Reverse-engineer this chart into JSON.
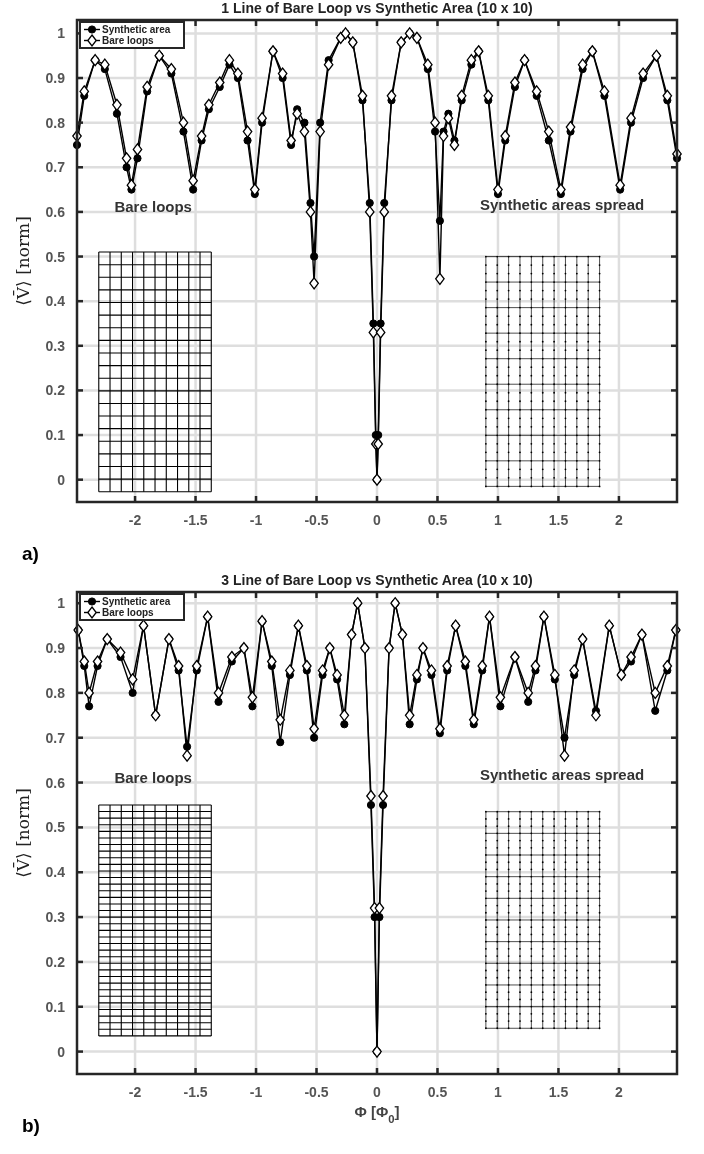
{
  "chart_data": [
    {
      "type": "line",
      "title": "1 Line of Bare Loop vs Synthetic Area (10 x 10)",
      "ylabel": "⟨V̄⟩ [norm]",
      "xlim": [
        -2.48,
        2.48
      ],
      "ylim": [
        -0.05,
        1.03
      ],
      "xticks": [
        -2,
        -1.5,
        -1,
        -0.5,
        0,
        0.5,
        1,
        1.5,
        2
      ],
      "yticks": [
        0,
        0.1,
        0.2,
        0.3,
        0.4,
        0.5,
        0.6,
        0.7,
        0.8,
        0.9,
        1
      ],
      "grid": true,
      "legend": "top left",
      "line_style": "solid",
      "annotations": [
        "Bare loops",
        "Synthetic areas spread",
        "a)"
      ],
      "series": [
        {
          "name": "Synthetic area",
          "color": "#000000",
          "marker": "circle",
          "x": [
            -2.48,
            -2.42,
            -2.33,
            -2.25,
            -2.15,
            -2.07,
            -2.03,
            -1.98,
            -1.9,
            -1.8,
            -1.7,
            -1.6,
            -1.52,
            -1.45,
            -1.39,
            -1.3,
            -1.22,
            -1.15,
            -1.07,
            -1.01,
            -0.95,
            -0.86,
            -0.78,
            -0.71,
            -0.66,
            -0.6,
            -0.55,
            -0.52,
            -0.47,
            -0.4,
            -0.3,
            -0.26,
            -0.2,
            -0.12,
            -0.06,
            -0.03,
            -0.01,
            0,
            0.01,
            0.03,
            0.06,
            0.12,
            0.2,
            0.27,
            0.33,
            0.42,
            0.48,
            0.52,
            0.55,
            0.59,
            0.64,
            0.7,
            0.78,
            0.84,
            0.92,
            1,
            1.06,
            1.14,
            1.22,
            1.32,
            1.42,
            1.52,
            1.6,
            1.7,
            1.78,
            1.88,
            2.01,
            2.1,
            2.2,
            2.31,
            2.4,
            2.48
          ],
          "values": [
            0.75,
            0.86,
            0.94,
            0.92,
            0.82,
            0.7,
            0.65,
            0.72,
            0.87,
            0.95,
            0.91,
            0.78,
            0.65,
            0.76,
            0.83,
            0.88,
            0.93,
            0.9,
            0.76,
            0.64,
            0.8,
            0.96,
            0.9,
            0.75,
            0.83,
            0.8,
            0.62,
            0.5,
            0.8,
            0.94,
            0.99,
            1,
            0.98,
            0.85,
            0.62,
            0.35,
            0.1,
            0,
            0.1,
            0.35,
            0.62,
            0.85,
            0.98,
            1,
            0.99,
            0.92,
            0.78,
            0.58,
            0.78,
            0.82,
            0.76,
            0.85,
            0.93,
            0.96,
            0.85,
            0.64,
            0.76,
            0.88,
            0.94,
            0.86,
            0.76,
            0.64,
            0.78,
            0.92,
            0.96,
            0.86,
            0.65,
            0.8,
            0.9,
            0.95,
            0.85,
            0.72
          ]
        },
        {
          "name": "Bare loops",
          "color": "#000000",
          "marker": "diamond",
          "x": [
            -2.48,
            -2.42,
            -2.33,
            -2.25,
            -2.15,
            -2.07,
            -2.03,
            -1.98,
            -1.9,
            -1.8,
            -1.7,
            -1.6,
            -1.52,
            -1.45,
            -1.39,
            -1.3,
            -1.22,
            -1.15,
            -1.07,
            -1.01,
            -0.95,
            -0.86,
            -0.78,
            -0.71,
            -0.66,
            -0.6,
            -0.55,
            -0.52,
            -0.47,
            -0.4,
            -0.3,
            -0.26,
            -0.2,
            -0.12,
            -0.06,
            -0.03,
            -0.01,
            0,
            0.01,
            0.03,
            0.06,
            0.12,
            0.2,
            0.27,
            0.33,
            0.42,
            0.48,
            0.52,
            0.55,
            0.59,
            0.64,
            0.7,
            0.78,
            0.84,
            0.92,
            1,
            1.06,
            1.14,
            1.22,
            1.32,
            1.42,
            1.52,
            1.6,
            1.7,
            1.78,
            1.88,
            2.01,
            2.1,
            2.2,
            2.31,
            2.4,
            2.48
          ],
          "values": [
            0.77,
            0.87,
            0.94,
            0.93,
            0.84,
            0.72,
            0.66,
            0.74,
            0.88,
            0.95,
            0.92,
            0.8,
            0.67,
            0.77,
            0.84,
            0.89,
            0.94,
            0.91,
            0.78,
            0.65,
            0.81,
            0.96,
            0.91,
            0.76,
            0.82,
            0.78,
            0.6,
            0.44,
            0.78,
            0.93,
            0.99,
            1,
            0.98,
            0.86,
            0.6,
            0.33,
            0.08,
            0,
            0.08,
            0.33,
            0.6,
            0.86,
            0.98,
            1,
            0.99,
            0.93,
            0.8,
            0.45,
            0.77,
            0.81,
            0.75,
            0.86,
            0.94,
            0.96,
            0.86,
            0.65,
            0.77,
            0.89,
            0.94,
            0.87,
            0.78,
            0.65,
            0.79,
            0.93,
            0.96,
            0.87,
            0.66,
            0.81,
            0.91,
            0.95,
            0.86,
            0.73
          ]
        }
      ]
    },
    {
      "type": "line",
      "title": "3 Line of Bare Loop vs Synthetic Area (10 x 10)",
      "xlabel": "Φ [Φ$_{0}$]",
      "ylabel": "⟨V̄⟩ [norm]",
      "xlim": [
        -2.48,
        2.48
      ],
      "ylim": [
        -0.05,
        1.025
      ],
      "xticks": [
        -2,
        -1.5,
        -1,
        -0.5,
        0,
        0.5,
        1,
        1.5,
        2
      ],
      "yticks": [
        0,
        0.1,
        0.2,
        0.3,
        0.4,
        0.5,
        0.6,
        0.7,
        0.8,
        0.9,
        1
      ],
      "grid": true,
      "legend": "top left",
      "line_style": "solid",
      "annotations": [
        "Bare loops",
        "Synthetic areas spread",
        "b)"
      ],
      "series": [
        {
          "name": "Synthetic area",
          "color": "#000000",
          "marker": "circle",
          "x": [
            -2.47,
            -2.42,
            -2.38,
            -2.31,
            -2.23,
            -2.12,
            -2.02,
            -1.93,
            -1.83,
            -1.72,
            -1.64,
            -1.57,
            -1.49,
            -1.4,
            -1.31,
            -1.2,
            -1.1,
            -1.03,
            -0.95,
            -0.87,
            -0.8,
            -0.72,
            -0.65,
            -0.58,
            -0.52,
            -0.45,
            -0.39,
            -0.33,
            -0.27,
            -0.21,
            -0.16,
            -0.1,
            -0.05,
            -0.02,
            0,
            0.02,
            0.05,
            0.1,
            0.15,
            0.21,
            0.27,
            0.33,
            0.38,
            0.45,
            0.52,
            0.58,
            0.65,
            0.73,
            0.8,
            0.87,
            0.93,
            1.02,
            1.14,
            1.25,
            1.31,
            1.38,
            1.47,
            1.55,
            1.63,
            1.7,
            1.81,
            1.92,
            2.02,
            2.1,
            2.19,
            2.3,
            2.4,
            2.47
          ],
          "values": [
            0.94,
            0.86,
            0.77,
            0.86,
            0.92,
            0.88,
            0.8,
            0.95,
            0.75,
            0.92,
            0.85,
            0.68,
            0.85,
            0.97,
            0.78,
            0.87,
            0.9,
            0.77,
            0.96,
            0.86,
            0.69,
            0.84,
            0.95,
            0.85,
            0.7,
            0.84,
            0.9,
            0.83,
            0.73,
            0.93,
            1,
            0.9,
            0.55,
            0.3,
            0,
            0.3,
            0.55,
            0.9,
            1,
            0.93,
            0.73,
            0.83,
            0.9,
            0.84,
            0.71,
            0.85,
            0.95,
            0.86,
            0.73,
            0.85,
            0.97,
            0.77,
            0.88,
            0.78,
            0.85,
            0.97,
            0.83,
            0.7,
            0.84,
            0.92,
            0.76,
            0.95,
            0.84,
            0.87,
            0.93,
            0.76,
            0.85,
            0.94
          ]
        },
        {
          "name": "Bare loops",
          "color": "#000000",
          "marker": "diamond",
          "x": [
            -2.47,
            -2.42,
            -2.38,
            -2.31,
            -2.23,
            -2.12,
            -2.02,
            -1.93,
            -1.83,
            -1.72,
            -1.64,
            -1.57,
            -1.49,
            -1.4,
            -1.31,
            -1.2,
            -1.1,
            -1.03,
            -0.95,
            -0.87,
            -0.8,
            -0.72,
            -0.65,
            -0.58,
            -0.52,
            -0.45,
            -0.39,
            -0.33,
            -0.27,
            -0.21,
            -0.16,
            -0.1,
            -0.05,
            -0.02,
            0,
            0.02,
            0.05,
            0.1,
            0.15,
            0.21,
            0.27,
            0.33,
            0.38,
            0.45,
            0.52,
            0.58,
            0.65,
            0.73,
            0.8,
            0.87,
            0.93,
            1.02,
            1.14,
            1.25,
            1.31,
            1.38,
            1.47,
            1.55,
            1.63,
            1.7,
            1.81,
            1.92,
            2.02,
            2.1,
            2.19,
            2.3,
            2.4,
            2.47
          ],
          "values": [
            0.94,
            0.87,
            0.8,
            0.87,
            0.92,
            0.89,
            0.83,
            0.95,
            0.75,
            0.92,
            0.86,
            0.66,
            0.86,
            0.97,
            0.8,
            0.88,
            0.9,
            0.79,
            0.96,
            0.87,
            0.74,
            0.85,
            0.95,
            0.86,
            0.72,
            0.85,
            0.9,
            0.84,
            0.75,
            0.93,
            1,
            0.9,
            0.57,
            0.32,
            0,
            0.32,
            0.57,
            0.9,
            1,
            0.93,
            0.75,
            0.84,
            0.9,
            0.85,
            0.72,
            0.86,
            0.95,
            0.87,
            0.74,
            0.86,
            0.97,
            0.79,
            0.88,
            0.8,
            0.86,
            0.97,
            0.84,
            0.66,
            0.85,
            0.92,
            0.75,
            0.95,
            0.84,
            0.88,
            0.93,
            0.8,
            0.86,
            0.94
          ]
        }
      ]
    }
  ]
}
